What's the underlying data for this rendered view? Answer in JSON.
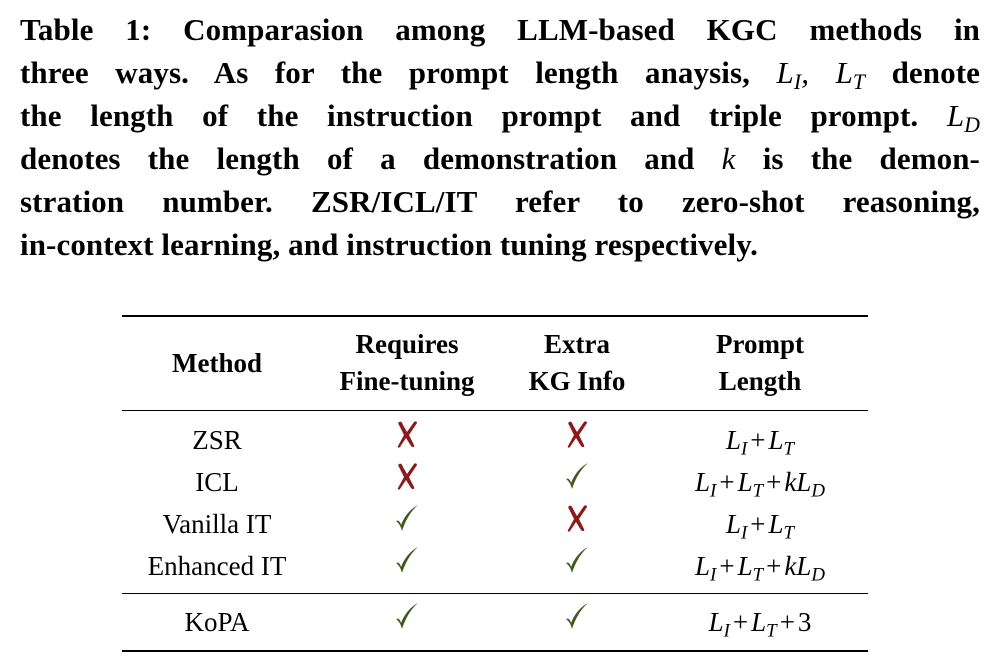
{
  "caption": {
    "label": "Table 1:",
    "lines": [
      "Table 1: Comparasion among LLM-based KGC methods in",
      "three ways. As for the prompt length anaysis,",
      "the length of the instruction prompt and triple prompt.",
      "denotes the length of a demonstration and",
      "stration number. ZSR/ICL/IT refer to zero-shot reasoning,",
      "in-context learning, and instruction tuning respectively."
    ],
    "line2_tail": "denote",
    "line4_tail": "is the demon-",
    "symbols": {
      "L": "L",
      "I": "I",
      "T": "T",
      "D": "D",
      "k": "k",
      "comma": ","
    }
  },
  "table": {
    "headers": {
      "method": "Method",
      "fine_tuning_1": "Requires",
      "fine_tuning_2": "Fine-tuning",
      "kg_info_1": "Extra",
      "kg_info_2": "KG Info",
      "length_1": "Prompt",
      "length_2": "Length"
    },
    "rows": [
      {
        "method": "ZSR",
        "fine_tuning": "cross",
        "kg_info": "cross",
        "length": "L_I + L_T"
      },
      {
        "method": "ICL",
        "fine_tuning": "cross",
        "kg_info": "check",
        "length": "L_I + L_T + kL_D"
      },
      {
        "method": "Vanilla IT",
        "fine_tuning": "check",
        "kg_info": "cross",
        "length": "L_I + L_T"
      },
      {
        "method": "Enhanced IT",
        "fine_tuning": "check",
        "kg_info": "check",
        "length": "L_I + L_T + kL_D"
      }
    ],
    "ours": {
      "method": "KoPA",
      "fine_tuning": "check",
      "kg_info": "check",
      "length": "L_I + L_T + 3"
    },
    "formula_parts": {
      "plus": "+",
      "three": "3"
    }
  },
  "colors": {
    "cross": "#8b1a1a",
    "check": "#3d5a1e",
    "text": "#000000"
  },
  "icons": {
    "check": "check-mark-icon",
    "cross": "cross-mark-icon"
  }
}
